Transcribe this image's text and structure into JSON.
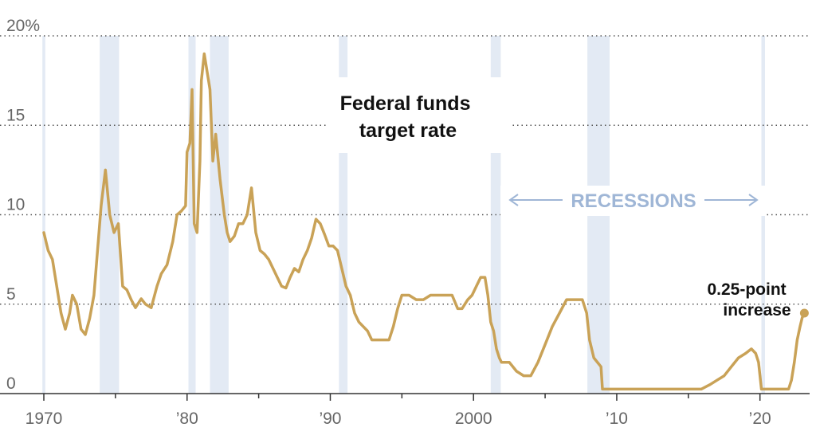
{
  "chart_data": {
    "type": "line",
    "title": "Federal funds target rate",
    "title_lines": [
      "Federal funds",
      "target rate"
    ],
    "xlabel": "",
    "ylabel": "",
    "xlim": [
      1970,
      2023.3
    ],
    "ylim": [
      0,
      20
    ],
    "y_ticks": [
      {
        "value": 0,
        "label": "0"
      },
      {
        "value": 5,
        "label": "5"
      },
      {
        "value": 10,
        "label": "10"
      },
      {
        "value": 15,
        "label": "15"
      },
      {
        "value": 20,
        "label": "20%"
      }
    ],
    "x_ticks": [
      {
        "value": 1970,
        "label": "1970"
      },
      {
        "value": 1980,
        "label": "’80"
      },
      {
        "value": 1990,
        "label": "’90"
      },
      {
        "value": 2000,
        "label": "2000"
      },
      {
        "value": 2010,
        "label": "’10"
      },
      {
        "value": 2020,
        "label": "’20"
      }
    ],
    "grid": "horizontal-dotted",
    "colors": {
      "line": "#c9a257",
      "recession": "#e3eaf4",
      "recession_label": "#9fb6d6",
      "grid": "#555555"
    },
    "recessions_label": "RECESSIONS",
    "recessions": [
      [
        1969.9,
        1970.1
      ],
      [
        1973.9,
        1975.25
      ],
      [
        1980.1,
        1980.6
      ],
      [
        1981.6,
        1982.9
      ],
      [
        1990.6,
        1991.2
      ],
      [
        2001.2,
        2001.9
      ],
      [
        2007.95,
        2009.5
      ],
      [
        2020.1,
        2020.35
      ]
    ],
    "series": [
      {
        "x": [
          1970.0,
          1970.3,
          1970.6,
          1970.9,
          1971.2,
          1971.5,
          1971.8,
          1972.0,
          1972.3,
          1972.6,
          1972.9,
          1973.2,
          1973.5,
          1973.8,
          1974.0,
          1974.3,
          1974.6,
          1974.9,
          1975.2,
          1975.5,
          1975.8,
          1976.1,
          1976.4,
          1976.8,
          1977.1,
          1977.5,
          1977.9,
          1978.2,
          1978.6,
          1979.0,
          1979.3,
          1979.6,
          1979.9,
          1980.0,
          1980.2,
          1980.35,
          1980.5,
          1980.7,
          1980.9,
          1981.0,
          1981.2,
          1981.4,
          1981.6,
          1981.8,
          1982.0,
          1982.3,
          1982.6,
          1982.8,
          1983.0,
          1983.3,
          1983.6,
          1983.9,
          1984.2,
          1984.5,
          1984.8,
          1985.1,
          1985.4,
          1985.7,
          1986.0,
          1986.3,
          1986.6,
          1986.9,
          1987.2,
          1987.5,
          1987.8,
          1988.1,
          1988.4,
          1988.7,
          1989.0,
          1989.3,
          1989.6,
          1989.9,
          1990.2,
          1990.5,
          1990.8,
          1991.1,
          1991.4,
          1991.7,
          1992.0,
          1992.3,
          1992.6,
          1992.9,
          1993.5,
          1994.1,
          1994.4,
          1994.7,
          1995.0,
          1995.5,
          1996.0,
          1996.5,
          1997.0,
          1997.5,
          1998.0,
          1998.5,
          1998.9,
          1999.2,
          1999.6,
          1999.9,
          2000.2,
          2000.5,
          2000.8,
          2001.0,
          2001.2,
          2001.4,
          2001.6,
          2001.8,
          2001.95,
          2002.5,
          2003.0,
          2003.5,
          2004.0,
          2004.5,
          2005.0,
          2005.5,
          2006.0,
          2006.5,
          2007.0,
          2007.6,
          2007.9,
          2008.1,
          2008.4,
          2008.9,
          2009.0,
          2010.0,
          2012.0,
          2014.0,
          2015.9,
          2016.5,
          2017.0,
          2017.5,
          2018.0,
          2018.5,
          2019.0,
          2019.4,
          2019.7,
          2019.9,
          2020.1,
          2020.3,
          2021.0,
          2022.0,
          2022.2,
          2022.4,
          2022.6,
          2022.8,
          2022.95,
          2023.1
        ],
        "y": [
          9.0,
          8.0,
          7.5,
          6.0,
          4.5,
          3.6,
          4.5,
          5.5,
          5.0,
          3.6,
          3.3,
          4.2,
          5.5,
          8.5,
          10.5,
          12.5,
          10.0,
          9.0,
          9.5,
          6.0,
          5.8,
          5.25,
          4.8,
          5.3,
          5.0,
          4.8,
          6.0,
          6.7,
          7.2,
          8.5,
          10.0,
          10.2,
          10.5,
          13.5,
          14.0,
          17.0,
          9.5,
          9.0,
          13.0,
          17.5,
          19.0,
          18.0,
          17.0,
          13.0,
          14.5,
          12.0,
          10.0,
          9.0,
          8.5,
          8.8,
          9.5,
          9.5,
          10.0,
          11.5,
          9.0,
          8.0,
          7.8,
          7.5,
          7.0,
          6.5,
          6.0,
          5.9,
          6.5,
          7.0,
          6.8,
          7.5,
          8.0,
          8.7,
          9.75,
          9.5,
          8.9,
          8.25,
          8.25,
          8.0,
          7.0,
          6.0,
          5.5,
          4.5,
          4.0,
          3.75,
          3.5,
          3.0,
          3.0,
          3.0,
          3.75,
          4.75,
          5.5,
          5.5,
          5.25,
          5.25,
          5.5,
          5.5,
          5.5,
          5.5,
          4.75,
          4.75,
          5.25,
          5.5,
          6.0,
          6.5,
          6.5,
          5.5,
          4.0,
          3.5,
          2.5,
          2.0,
          1.75,
          1.75,
          1.25,
          1.0,
          1.0,
          1.75,
          2.75,
          3.75,
          4.5,
          5.25,
          5.25,
          5.25,
          4.5,
          3.0,
          2.0,
          1.5,
          0.25,
          0.25,
          0.25,
          0.25,
          0.25,
          0.5,
          0.75,
          1.0,
          1.5,
          2.0,
          2.25,
          2.5,
          2.25,
          1.75,
          0.25,
          0.25,
          0.25,
          0.25,
          0.75,
          1.75,
          3.0,
          3.75,
          4.25,
          4.5
        ],
        "end_point": {
          "x": 2023.1,
          "y": 4.5
        }
      }
    ],
    "annotation": [
      "0.25-point",
      "increase"
    ]
  }
}
